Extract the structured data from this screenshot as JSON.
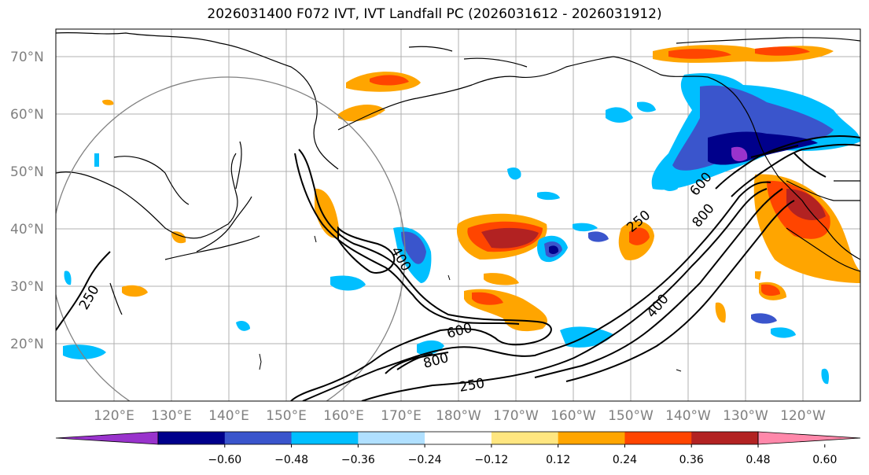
{
  "title": "2026031400 F072 IVT, IVT Landfall PC (2026031612 - 2026031912)",
  "lat_labels": [
    "70°N",
    "60°N",
    "50°N",
    "40°N",
    "30°N",
    "20°N"
  ],
  "lon_labels": [
    "120°E",
    "130°E",
    "140°E",
    "150°E",
    "160°E",
    "170°E",
    "180°W",
    "170°W",
    "160°W",
    "150°W",
    "140°W",
    "130°W",
    "120°W"
  ],
  "contour_labels": [
    "250",
    "400",
    "600",
    "800",
    "250",
    "400",
    "600",
    "800",
    "250"
  ],
  "colorbar": {
    "ticks": [
      "−0.60",
      "−0.48",
      "−0.36",
      "−0.24",
      "−0.12",
      "0.12",
      "0.24",
      "0.36",
      "0.48",
      "0.60"
    ],
    "colors": [
      "#9933cc",
      "#00008b",
      "#3a55cc",
      "#00bfff",
      "#b0e0ff",
      "#ffffff",
      "#ffe680",
      "#ffa500",
      "#ff4500",
      "#b22222",
      "#ff88aa"
    ]
  },
  "legend_colors": {
    "positive": "#ffa500",
    "negative": "#00bfff",
    "contour": "#000000",
    "circle": "#808080"
  }
}
